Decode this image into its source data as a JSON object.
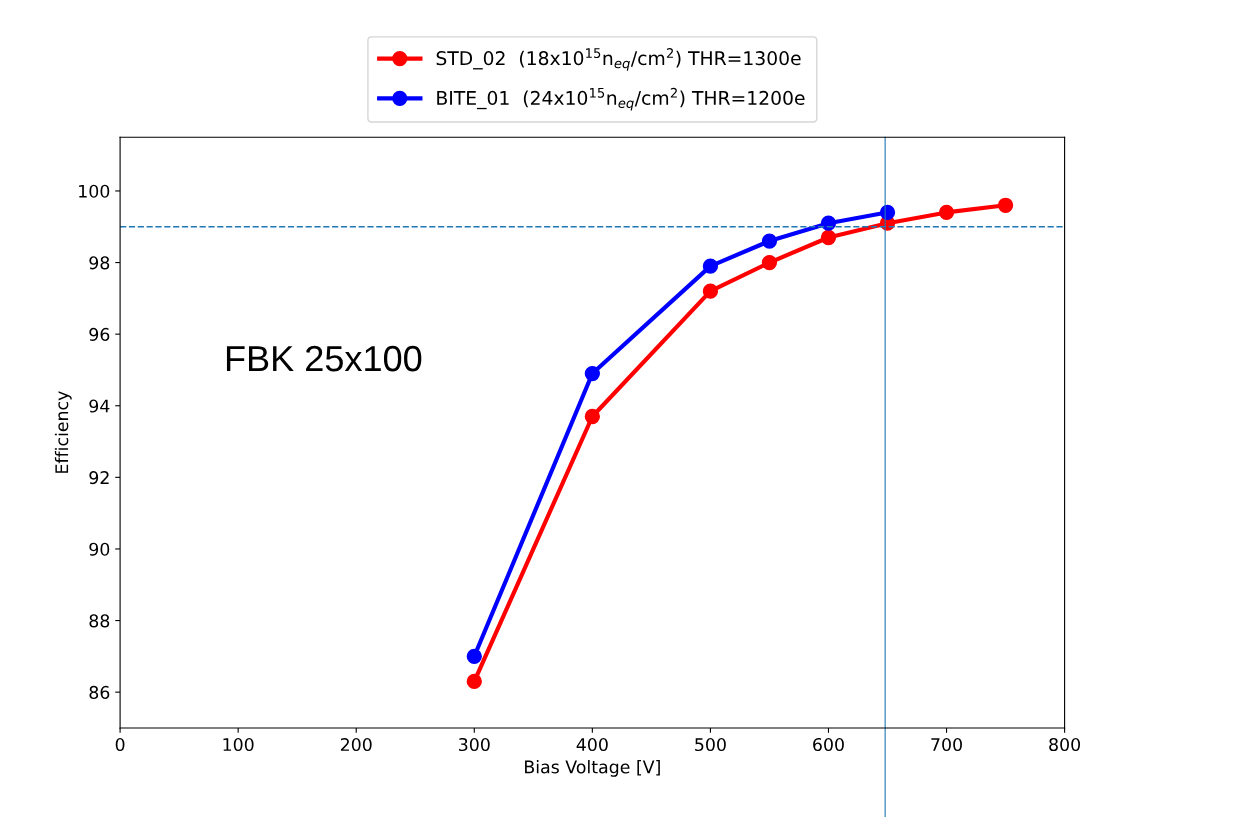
{
  "chart_data": {
    "type": "line",
    "xlabel": "Bias Voltage [V]",
    "ylabel": "Efficiency",
    "annotations": [
      "FBK 25x100"
    ],
    "series": [
      {
        "name": "STD_02  (18x10$^{15}$n$_{eq}$/cm$^{2}$) THR=1300e",
        "color": "#ff0000",
        "x": [
          300,
          400,
          500,
          550,
          600,
          650,
          700,
          750
        ],
        "values": [
          86.3,
          93.7,
          97.2,
          98.0,
          98.7,
          99.1,
          99.4,
          99.6
        ]
      },
      {
        "name": "BITE_01  (24x10$^{15}$n$_{eq}$/cm$^{2}$) THR=1200e",
        "color": "#0000ff",
        "x": [
          300,
          400,
          500,
          550,
          600,
          650
        ],
        "values": [
          87.0,
          94.9,
          97.9,
          98.6,
          99.1,
          99.4
        ]
      }
    ],
    "xlim": [
      0,
      800
    ],
    "xticks": [
      0,
      100,
      200,
      300,
      400,
      500,
      600,
      700,
      800
    ],
    "ylim": [
      85,
      101.5
    ],
    "yticks": [
      86,
      88,
      90,
      92,
      94,
      96,
      98,
      100
    ],
    "ref_lines": [
      {
        "axis": "y",
        "value": 99,
        "color": "#1f77b4",
        "line_style": "dashed"
      },
      {
        "axis": "x",
        "value": 648,
        "color": "#1f77b4",
        "line_style": "solid"
      }
    ],
    "marker": "circle",
    "line_style": "solid",
    "grid": false,
    "legend": "top"
  }
}
